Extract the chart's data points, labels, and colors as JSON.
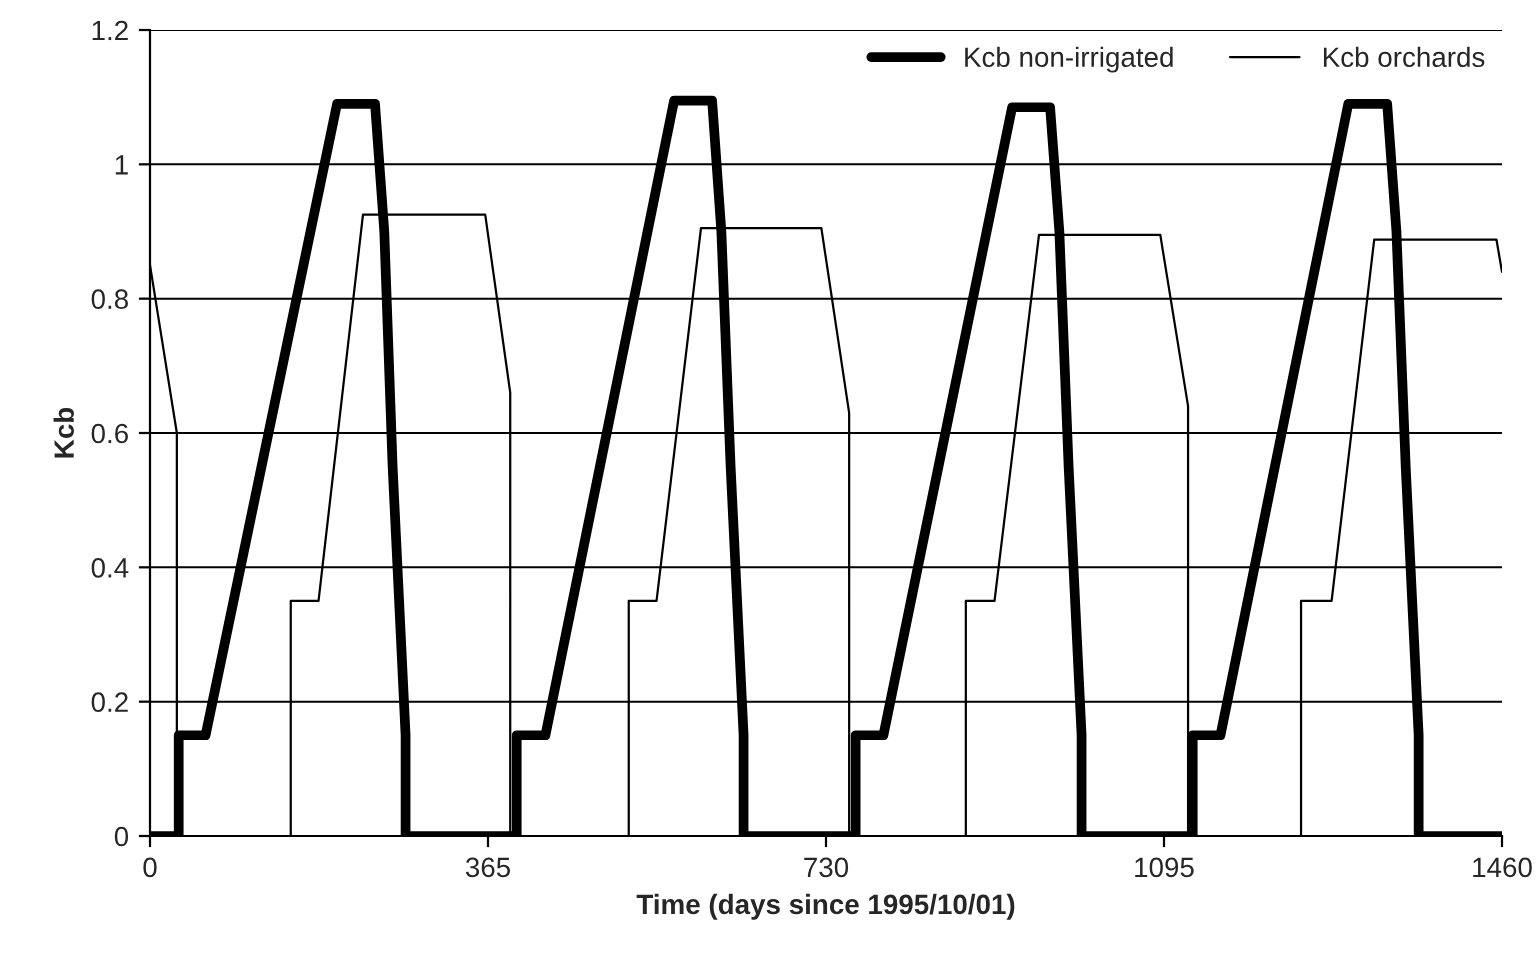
{
  "chart_data": {
    "type": "line",
    "xlabel": "Time (days since 1995/10/01)",
    "ylabel": "Kcb",
    "xlim": [
      0,
      1460
    ],
    "ylim": [
      0,
      1.2
    ],
    "xticks": [
      0,
      365,
      730,
      1095,
      1460
    ],
    "yticks": [
      0,
      0.2,
      0.4,
      0.6,
      0.8,
      1,
      1.2
    ],
    "grid": "y",
    "legend": "top right",
    "marker": "none",
    "line_style": "solid",
    "series": [
      {
        "name": "Kcb non-irrigated",
        "color": "#000000",
        "x": [
          0,
          31,
          31,
          60,
          202,
          243,
          253,
          262,
          276,
          276,
          396,
          396,
          427,
          566,
          607,
          617,
          627,
          641,
          641,
          762,
          762,
          792,
          931,
          972,
          982,
          992,
          1006,
          1006,
          1126,
          1126,
          1156,
          1294,
          1336,
          1346,
          1356,
          1370,
          1370,
          1460
        ],
        "values": [
          0,
          0,
          0.15,
          0.15,
          1.09,
          1.09,
          0.9,
          0.55,
          0.15,
          0,
          0,
          0.15,
          0.15,
          1.095,
          1.095,
          0.9,
          0.55,
          0.15,
          0,
          0,
          0.15,
          0.15,
          1.085,
          1.085,
          0.9,
          0.55,
          0.15,
          0,
          0,
          0.15,
          0.15,
          1.09,
          1.09,
          0.9,
          0.55,
          0.15,
          0,
          0
        ]
      },
      {
        "name": "Kcb orchards",
        "color": "#000000",
        "x": [
          0,
          29,
          29,
          152,
          152,
          182,
          230,
          362,
          389,
          389,
          517,
          517,
          547,
          595,
          725,
          755,
          755,
          881,
          881,
          912,
          960,
          1091,
          1121,
          1121,
          1243,
          1243,
          1276,
          1322,
          1454,
          1460
        ],
        "values": [
          0.85,
          0.6,
          0,
          0,
          0.35,
          0.35,
          0.925,
          0.925,
          0.66,
          0,
          0,
          0.35,
          0.35,
          0.905,
          0.905,
          0.63,
          0,
          0,
          0.35,
          0.35,
          0.895,
          0.895,
          0.64,
          0,
          0,
          0.35,
          0.35,
          0.888,
          0.888,
          0.84
        ]
      }
    ]
  }
}
